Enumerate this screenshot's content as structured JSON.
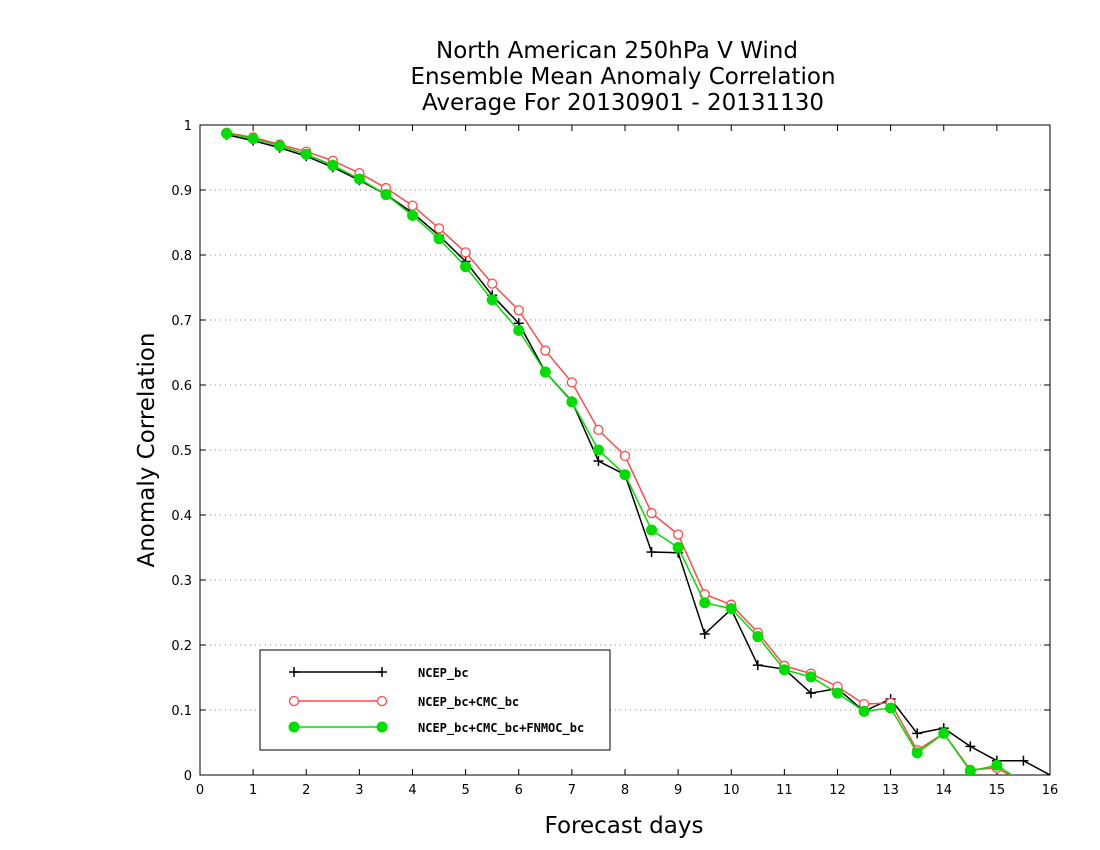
{
  "chart_data": {
    "type": "line",
    "title": [
      "North American 250hPa V Wind",
      "Ensemble Mean Anomaly Correlation",
      "Average For 20130901 - 20131130"
    ],
    "xlabel": "Forecast days",
    "ylabel": "Anomaly Correlation",
    "xlim": [
      0,
      16
    ],
    "ylim": [
      0,
      1
    ],
    "x_ticks": [
      "0",
      "1",
      "2",
      "3",
      "4",
      "5",
      "6",
      "7",
      "8",
      "9",
      "10",
      "11",
      "12",
      "13",
      "14",
      "15",
      "16"
    ],
    "y_ticks": [
      "0",
      "0.1",
      "0.2",
      "0.3",
      "0.4",
      "0.5",
      "0.6",
      "0.7",
      "0.8",
      "0.9",
      "1"
    ],
    "grid": "horizontal dotted",
    "legend_position": "bottom-left",
    "x": [
      0.5,
      1,
      1.5,
      2,
      2.5,
      3,
      3.5,
      4,
      4.5,
      5,
      5.5,
      6,
      6.5,
      7,
      7.5,
      8,
      8.5,
      9,
      9.5,
      10,
      10.5,
      11,
      11.5,
      12,
      12.5,
      13,
      13.5,
      14,
      14.5,
      15,
      15.5,
      16
    ],
    "series": [
      {
        "name": "NCEP_bc",
        "color": "#000000",
        "marker": "plus",
        "values": [
          0.985,
          0.976,
          0.965,
          0.952,
          0.935,
          0.915,
          0.893,
          0.865,
          0.83,
          0.79,
          0.738,
          0.695,
          0.62,
          0.575,
          0.483,
          0.462,
          0.343,
          0.342,
          0.217,
          0.255,
          0.169,
          0.163,
          0.126,
          0.133,
          0.098,
          0.117,
          0.064,
          0.072,
          0.044,
          0.022,
          0.022,
          0.0
        ]
      },
      {
        "name": "NCEP_bc+CMC_bc",
        "color": "#ff4a4a",
        "marker": "open-circle",
        "values": [
          0.988,
          0.981,
          0.97,
          0.959,
          0.945,
          0.926,
          0.903,
          0.876,
          0.841,
          0.804,
          0.756,
          0.715,
          0.653,
          0.604,
          0.531,
          0.491,
          0.403,
          0.37,
          0.278,
          0.262,
          0.219,
          0.168,
          0.156,
          0.136,
          0.109,
          0.111,
          0.038,
          0.064,
          0.008,
          0.011,
          null,
          null
        ]
      },
      {
        "name": "NCEP_bc+CMC_bc+FNMOC_bc",
        "color": "#00dd00",
        "marker": "filled-circle",
        "values": [
          0.987,
          0.979,
          0.968,
          0.955,
          0.938,
          0.917,
          0.893,
          0.861,
          0.825,
          0.782,
          0.731,
          0.684,
          0.62,
          0.574,
          0.5,
          0.462,
          0.377,
          0.35,
          0.265,
          0.256,
          0.213,
          0.162,
          0.151,
          0.126,
          0.098,
          0.103,
          0.034,
          0.064,
          0.006,
          0.015,
          null,
          null
        ]
      }
    ]
  }
}
